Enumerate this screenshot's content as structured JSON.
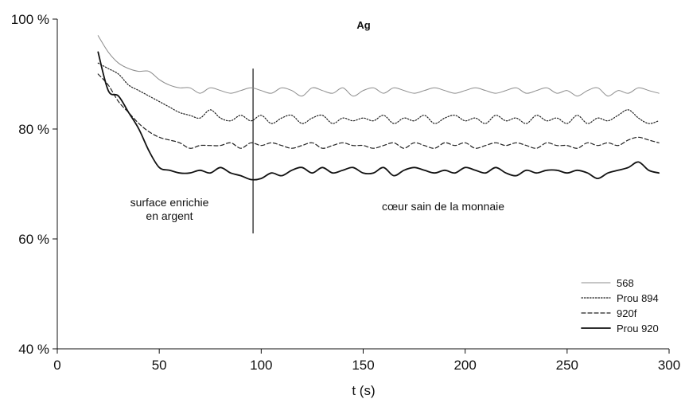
{
  "chart_data": {
    "type": "line",
    "title": "Ag",
    "xlabel": "t (s)",
    "ylabel": "",
    "xlim": [
      0,
      300
    ],
    "ylim": [
      40,
      100
    ],
    "x_ticks": [
      "0",
      "50",
      "100",
      "150",
      "200",
      "250",
      "300"
    ],
    "y_ticks": [
      "40 %",
      "60 %",
      "80 %",
      "100 %"
    ],
    "grid": false,
    "legend_position": "bottom-right",
    "annotations": {
      "left_line1": "surface enrichie",
      "left_line2": "en argent",
      "right": "cœur sain de la monnaie",
      "divider_x": 96
    },
    "x": [
      20,
      25,
      30,
      35,
      40,
      45,
      50,
      55,
      60,
      65,
      70,
      75,
      80,
      85,
      90,
      95,
      100,
      105,
      110,
      115,
      120,
      125,
      130,
      135,
      140,
      145,
      150,
      155,
      160,
      165,
      170,
      175,
      180,
      185,
      190,
      195,
      200,
      205,
      210,
      215,
      220,
      225,
      230,
      235,
      240,
      245,
      250,
      255,
      260,
      265,
      270,
      275,
      280,
      285,
      290,
      295
    ],
    "series": [
      {
        "name": "568",
        "style": "solid-thin",
        "color": "#8c8c8c",
        "values": [
          97,
          94,
          92,
          91,
          90.5,
          90.5,
          89,
          88,
          87.5,
          87.5,
          86.5,
          87.5,
          87,
          86.5,
          87,
          87.5,
          87,
          86.5,
          87.5,
          87,
          86,
          87.5,
          87,
          86.5,
          87.5,
          86,
          87,
          87.5,
          86.5,
          87.5,
          87,
          86.5,
          87,
          87.5,
          87,
          86.5,
          87,
          87.5,
          87,
          86.5,
          87,
          87.5,
          86.5,
          87,
          87.5,
          86.5,
          87,
          86,
          87,
          87.5,
          86,
          87,
          86.5,
          87.5,
          87,
          86.5
        ]
      },
      {
        "name": "Prou 894",
        "style": "dotted",
        "color": "#222222",
        "values": [
          92,
          91,
          90,
          88,
          87,
          86,
          85,
          84,
          83,
          82.5,
          82,
          83.5,
          82,
          81.5,
          82.5,
          81.5,
          82.5,
          81,
          82,
          82.5,
          81,
          82,
          82.5,
          81,
          82,
          81.5,
          82,
          81.5,
          82.5,
          81,
          82,
          81.5,
          82.5,
          81,
          82,
          82.5,
          81.5,
          82,
          81,
          82.5,
          81.5,
          82,
          81,
          82.5,
          81.5,
          82,
          81,
          82.5,
          81,
          82,
          81.5,
          82.5,
          83.5,
          82,
          81,
          81.5
        ]
      },
      {
        "name": "920f",
        "style": "dashed",
        "color": "#222222",
        "values": [
          90,
          88,
          85,
          83,
          81,
          79.5,
          78.5,
          78,
          77.5,
          76.5,
          77,
          77,
          77,
          77.5,
          76.5,
          77.5,
          77,
          77.5,
          77,
          76.5,
          77,
          77.5,
          76.5,
          77,
          77.5,
          77,
          77,
          76.5,
          77,
          77.5,
          76.5,
          77.5,
          77,
          76.5,
          77.5,
          77,
          77.5,
          76.5,
          77,
          77.5,
          77,
          77.5,
          77,
          76.5,
          77.5,
          77,
          77,
          76.5,
          77.5,
          77,
          77.5,
          77,
          78,
          78.5,
          78,
          77.5
        ]
      },
      {
        "name": "Prou 920",
        "style": "solid-thick",
        "color": "#111111",
        "values": [
          94,
          87,
          86,
          83,
          80,
          76,
          73,
          72.5,
          72,
          72,
          72.5,
          72,
          73,
          72,
          71.5,
          70.8,
          71,
          72,
          71.5,
          72.5,
          73,
          72,
          73,
          72,
          72.5,
          73,
          72,
          72,
          73,
          71.5,
          72.5,
          73,
          72.5,
          72,
          72.5,
          72,
          73,
          72.5,
          72,
          73,
          72,
          71.5,
          72.5,
          72,
          72.5,
          72.5,
          72,
          72.5,
          72,
          71,
          72,
          72.5,
          73,
          74,
          72.5,
          72
        ]
      }
    ]
  }
}
